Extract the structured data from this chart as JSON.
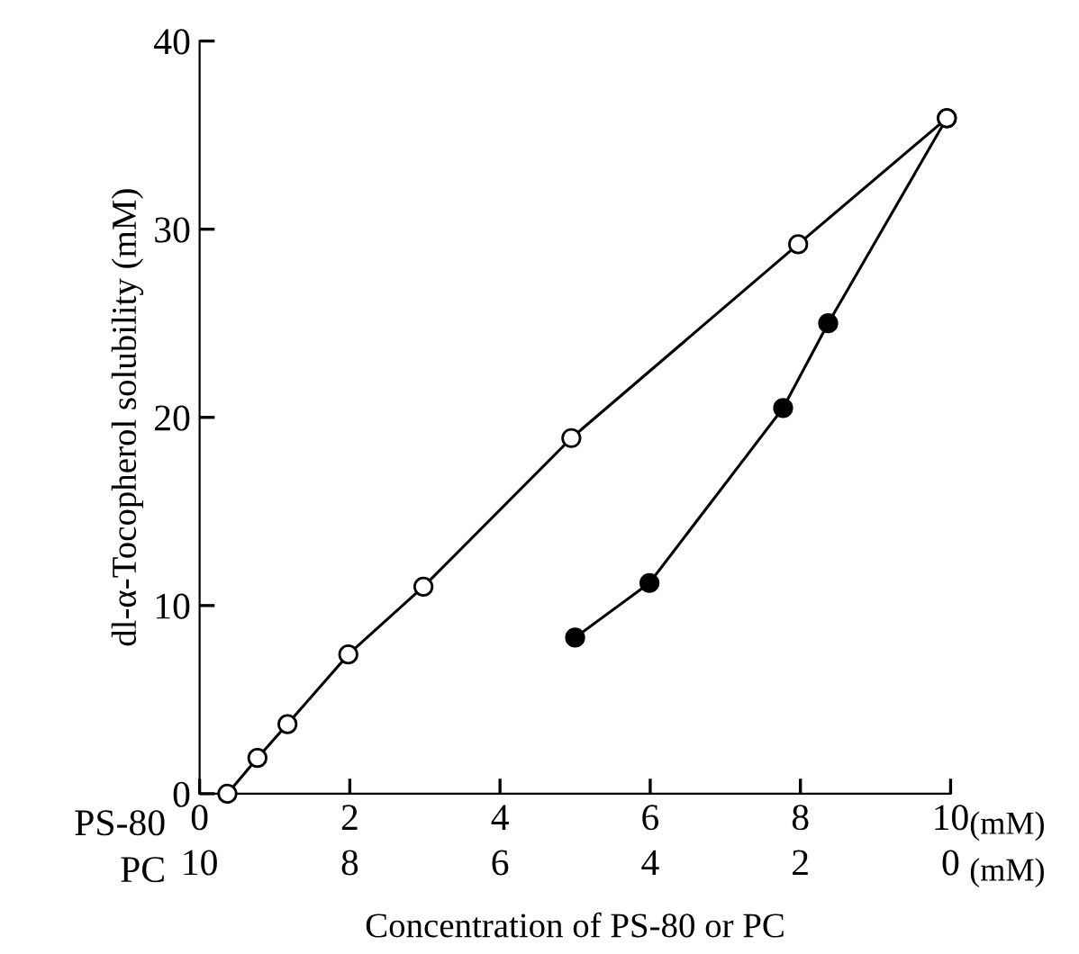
{
  "chart_data": {
    "type": "line",
    "xlabel": "Concentration of PS-80 or PC",
    "ylabel": "dl-α-Tocopherol solubility (mM)",
    "xlim": [
      0,
      10
    ],
    "xticks": [
      0,
      2,
      4,
      6,
      8,
      10
    ],
    "ylim": [
      0,
      40
    ],
    "yticks": [
      0,
      10,
      20,
      30,
      40
    ],
    "x2lim": [
      10,
      0
    ],
    "x2ticks": [
      10,
      8,
      6,
      4,
      2,
      0
    ],
    "annotations": [
      "PS-80",
      "(mM)",
      "PC",
      "(mM)"
    ],
    "grid": false,
    "legend": false,
    "marker": "circle",
    "line_style": "solid",
    "series": [
      {
        "color": "#ffffff",
        "x": [
          0.37,
          0.77,
          1.17,
          1.98,
          2.98,
          4.95,
          7.97,
          9.95
        ],
        "values": [
          0,
          1.9,
          3.7,
          7.4,
          11.0,
          18.9,
          29.2,
          35.9
        ]
      },
      {
        "color": "#000000",
        "x": [
          5.0,
          5.99,
          7.77,
          8.37,
          9.95
        ],
        "values": [
          8.3,
          11.2,
          20.5,
          25.0,
          35.9
        ]
      }
    ]
  }
}
